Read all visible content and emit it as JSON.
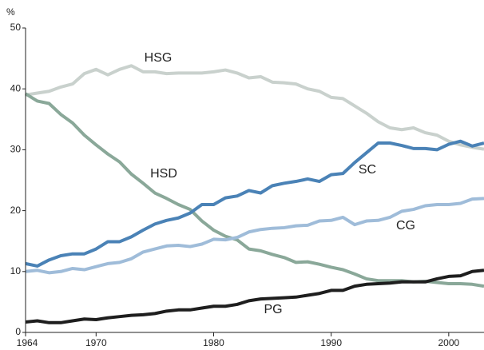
{
  "chart_data": {
    "type": "line",
    "y_label": "%",
    "x": [
      1964,
      1965,
      1966,
      1967,
      1968,
      1969,
      1970,
      1971,
      1972,
      1973,
      1974,
      1975,
      1976,
      1977,
      1978,
      1979,
      1980,
      1981,
      1982,
      1983,
      1984,
      1985,
      1986,
      1987,
      1988,
      1989,
      1990,
      1991,
      1992,
      1993,
      1994,
      1995,
      1996,
      1997,
      1998,
      1999,
      2000,
      2001,
      2002,
      2003
    ],
    "xlim": [
      1964,
      2003
    ],
    "xticks": [
      1964,
      1970,
      1980,
      1990,
      2000
    ],
    "ylim": [
      0,
      50
    ],
    "yticks": [
      0,
      10,
      20,
      30,
      40,
      50
    ],
    "series": [
      {
        "name": "HSG",
        "color": "#c9d1cd",
        "values": [
          39.0,
          39.3,
          39.6,
          40.3,
          40.8,
          42.5,
          43.2,
          42.3,
          43.2,
          43.8,
          42.8,
          42.8,
          42.5,
          42.6,
          42.6,
          42.6,
          42.8,
          43.1,
          42.6,
          41.8,
          42.0,
          41.1,
          41.0,
          40.8,
          40.0,
          39.6,
          38.6,
          38.4,
          37.2,
          36.0,
          34.6,
          33.6,
          33.3,
          33.6,
          32.8,
          32.4,
          31.4,
          30.8,
          30.4,
          30.1
        ]
      },
      {
        "name": "HSD",
        "color": "#8aa899",
        "values": [
          39.2,
          38.0,
          37.6,
          35.8,
          34.4,
          32.4,
          30.8,
          29.3,
          28.0,
          26.0,
          24.5,
          22.9,
          22.0,
          21.0,
          20.2,
          18.3,
          16.8,
          15.8,
          15.2,
          13.7,
          13.4,
          12.8,
          12.3,
          11.5,
          11.6,
          11.2,
          10.7,
          10.3,
          9.6,
          8.8,
          8.5,
          8.5,
          8.5,
          8.3,
          8.4,
          8.2,
          8.0,
          8.0,
          7.9,
          7.6
        ]
      },
      {
        "name": "SC",
        "color": "#4a82b6",
        "values": [
          11.3,
          10.9,
          11.9,
          12.6,
          12.9,
          12.9,
          13.7,
          14.9,
          14.9,
          15.7,
          16.8,
          17.8,
          18.4,
          18.8,
          19.6,
          21.0,
          21.0,
          22.1,
          22.4,
          23.3,
          22.9,
          24.1,
          24.5,
          24.8,
          25.2,
          24.8,
          25.9,
          26.1,
          27.9,
          29.5,
          31.1,
          31.1,
          30.7,
          30.2,
          30.2,
          30.0,
          30.9,
          31.4,
          30.6,
          31.1
        ]
      },
      {
        "name": "CG",
        "color": "#9fbcd9",
        "values": [
          10.0,
          10.2,
          9.8,
          10.0,
          10.5,
          10.3,
          10.8,
          11.3,
          11.5,
          12.1,
          13.2,
          13.7,
          14.2,
          14.3,
          14.1,
          14.5,
          15.3,
          15.2,
          15.6,
          16.5,
          16.9,
          17.1,
          17.2,
          17.5,
          17.6,
          18.3,
          18.4,
          18.9,
          17.7,
          18.3,
          18.4,
          18.9,
          19.9,
          20.2,
          20.8,
          21.0,
          21.0,
          21.2,
          21.9,
          22.0
        ]
      },
      {
        "name": "PG",
        "color": "#1e1e1e",
        "values": [
          1.7,
          1.9,
          1.6,
          1.6,
          1.9,
          2.2,
          2.1,
          2.4,
          2.6,
          2.8,
          2.9,
          3.1,
          3.5,
          3.7,
          3.7,
          4.0,
          4.3,
          4.3,
          4.6,
          5.2,
          5.5,
          5.6,
          5.7,
          5.8,
          6.1,
          6.4,
          6.9,
          6.9,
          7.6,
          7.9,
          8.0,
          8.1,
          8.3,
          8.3,
          8.3,
          8.8,
          9.2,
          9.3,
          10.0,
          10.2
        ]
      }
    ]
  }
}
